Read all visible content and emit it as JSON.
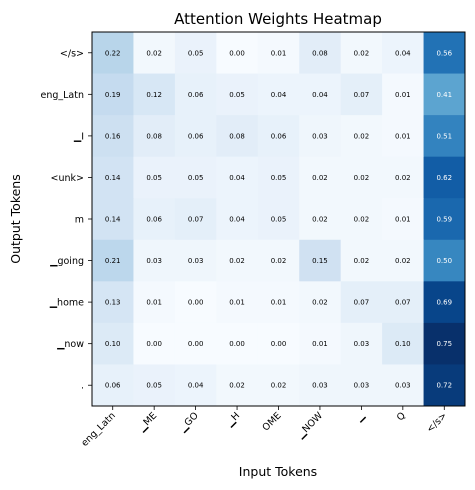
{
  "chart_data": {
    "type": "heatmap",
    "title": "Attention Weights Heatmap",
    "xlabel": "Input Tokens",
    "ylabel": "Output Tokens",
    "x_categories": [
      "eng_Latn",
      "▁ME",
      "▁GO",
      "▁H",
      "OME",
      "▁NOW",
      "▁",
      "Q",
      "</s>"
    ],
    "y_categories": [
      "</s>",
      "eng_Latn",
      "▁I",
      "<unk>",
      "m",
      "▁going",
      "▁home",
      "▁now",
      "."
    ],
    "values": [
      [
        0.22,
        0.02,
        0.05,
        0.0,
        0.01,
        0.08,
        0.02,
        0.04,
        0.56
      ],
      [
        0.19,
        0.12,
        0.06,
        0.05,
        0.04,
        0.04,
        0.07,
        0.01,
        0.41
      ],
      [
        0.16,
        0.08,
        0.06,
        0.08,
        0.06,
        0.03,
        0.02,
        0.01,
        0.51
      ],
      [
        0.14,
        0.05,
        0.05,
        0.04,
        0.05,
        0.02,
        0.02,
        0.02,
        0.62
      ],
      [
        0.14,
        0.06,
        0.07,
        0.04,
        0.05,
        0.02,
        0.02,
        0.01,
        0.59
      ],
      [
        0.21,
        0.03,
        0.03,
        0.02,
        0.02,
        0.15,
        0.02,
        0.02,
        0.5
      ],
      [
        0.13,
        0.01,
        0.0,
        0.01,
        0.01,
        0.02,
        0.07,
        0.07,
        0.69
      ],
      [
        0.1,
        0.0,
        0.0,
        0.0,
        0.0,
        0.01,
        0.03,
        0.1,
        0.75
      ],
      [
        0.06,
        0.05,
        0.04,
        0.02,
        0.02,
        0.03,
        0.03,
        0.03,
        0.72
      ]
    ],
    "colormap": "Blues",
    "value_format": "2 decimals"
  }
}
